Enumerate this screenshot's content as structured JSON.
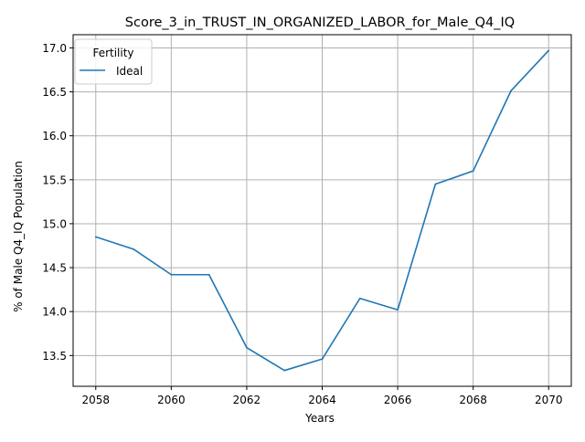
{
  "chart_data": {
    "type": "line",
    "title": "Score_3_in_TRUST_IN_ORGANIZED_LABOR_for_Male_Q4_IQ",
    "xlabel": "Years",
    "ylabel": "% of Male Q4_IQ Population",
    "xlim": [
      2057.4,
      2070.6
    ],
    "ylim": [
      13.15,
      17.15
    ],
    "x_ticks": [
      2058,
      2060,
      2062,
      2064,
      2066,
      2068,
      2070
    ],
    "y_ticks": [
      13.5,
      14.0,
      14.5,
      15.0,
      15.5,
      16.0,
      16.5,
      17.0
    ],
    "grid": true,
    "legend": {
      "title": "Fertility",
      "placement": "top-left"
    },
    "x": [
      2058,
      2059,
      2060,
      2061,
      2062,
      2063,
      2064,
      2065,
      2066,
      2067,
      2068,
      2069,
      2070
    ],
    "series": [
      {
        "name": "Ideal",
        "color": "#1f77b4",
        "values": [
          14.85,
          14.71,
          14.42,
          14.42,
          13.59,
          13.33,
          13.46,
          14.15,
          14.02,
          15.45,
          15.6,
          16.51,
          16.97
        ]
      }
    ]
  }
}
